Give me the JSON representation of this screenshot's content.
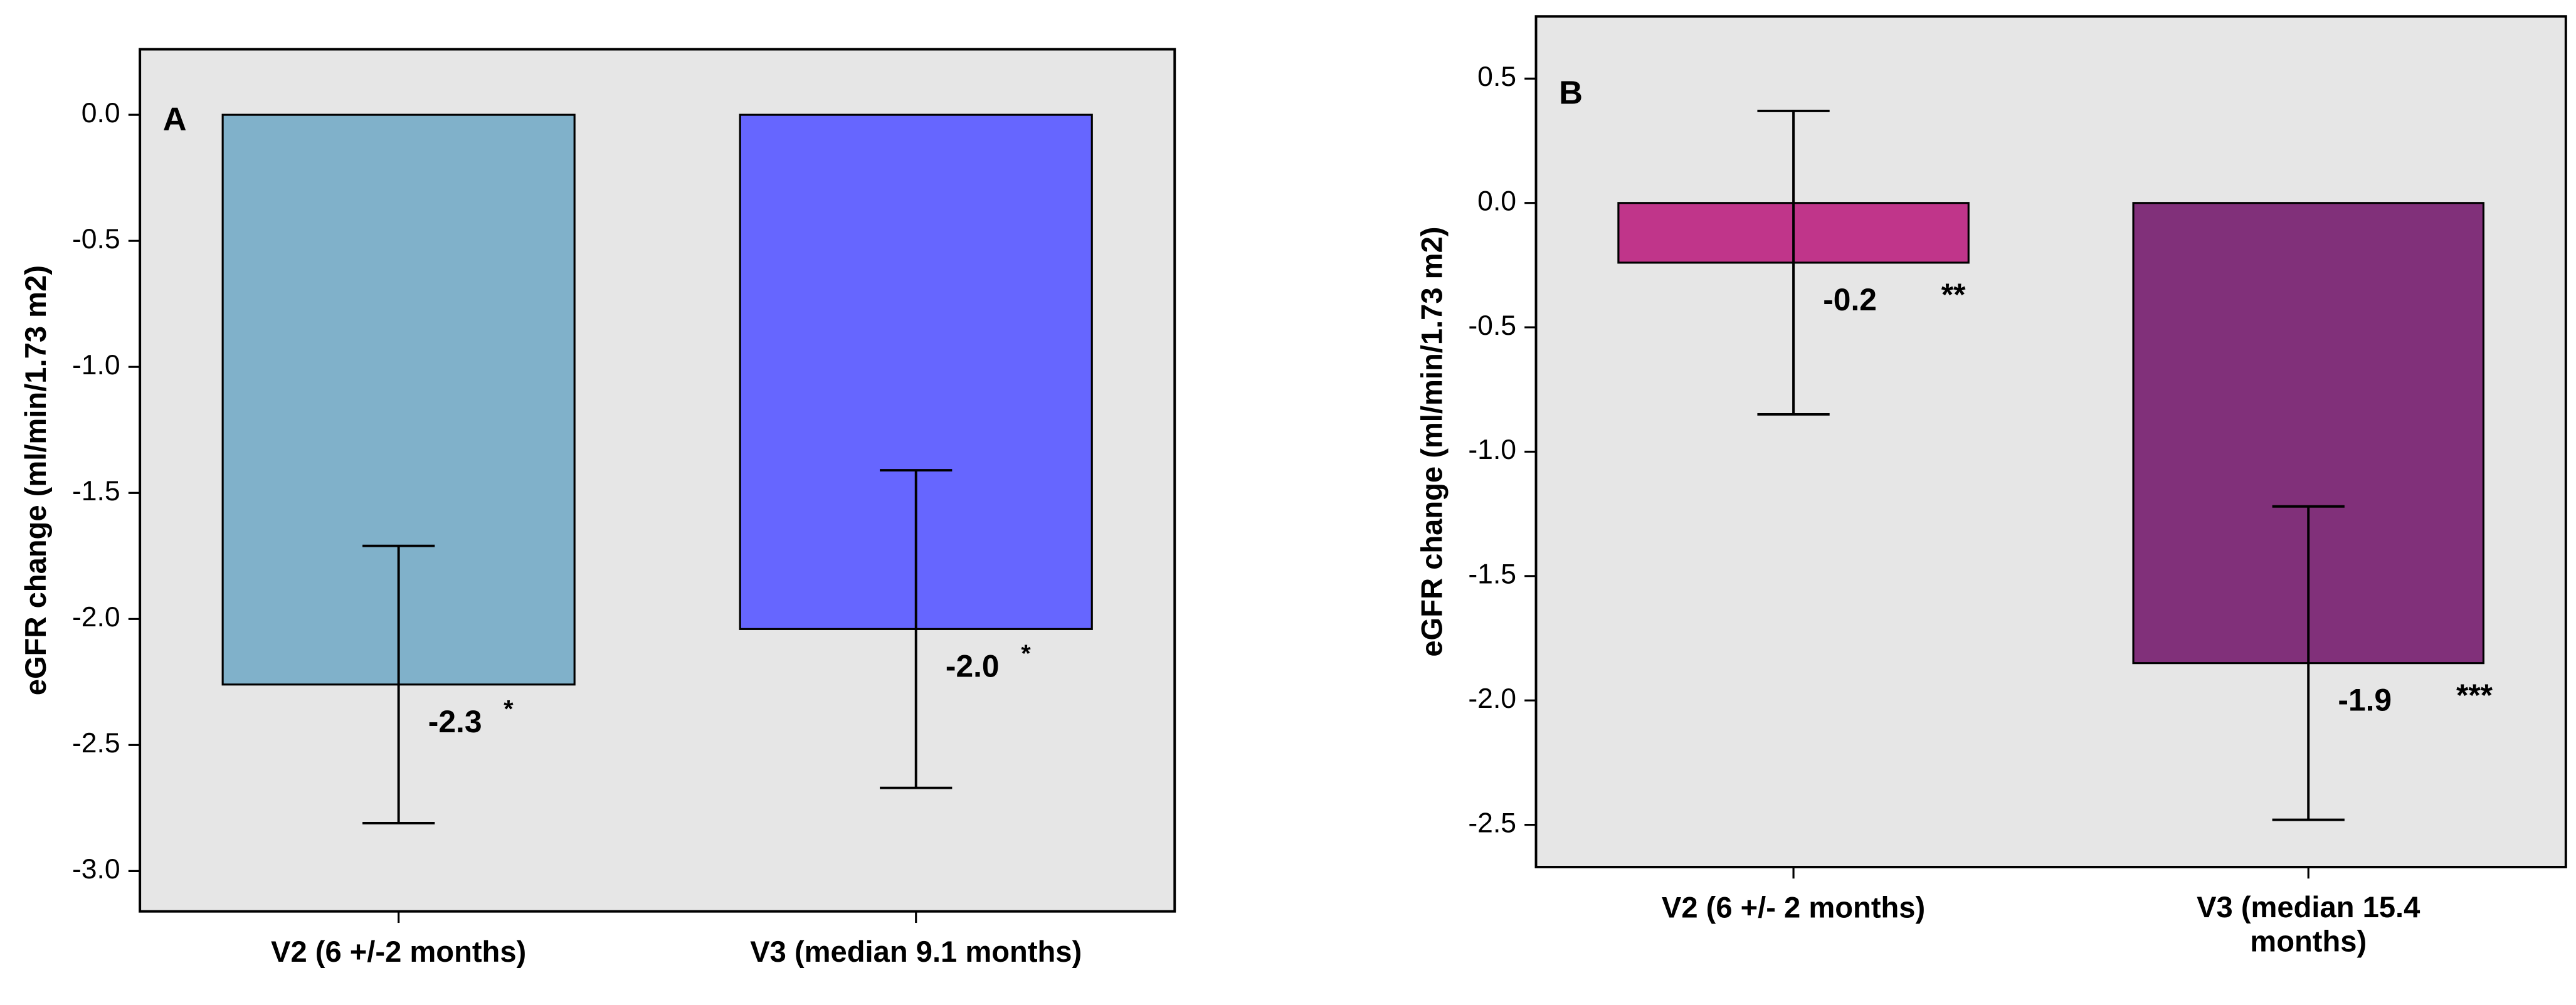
{
  "chart_data": [
    {
      "type": "bar",
      "panel_label": "A",
      "y_label": "eGFR change (ml/min/1.73 m2)",
      "categories": [
        "V2 (6 +/-2 months)",
        "V3 (median 9.1 months)"
      ],
      "values": [
        -2.26,
        -2.04
      ],
      "errors": [
        0.55,
        0.63
      ],
      "value_labels": [
        "-2.3",
        "-2.0"
      ],
      "significance": [
        "*",
        "*"
      ],
      "colors": [
        "#80b1ca",
        "#6666ff"
      ],
      "ylim": [
        -3.16,
        0.26
      ],
      "yticks": [
        {
          "value": 0,
          "label": "0.0"
        },
        -0.5,
        {
          "value": -1,
          "label": "-1.0"
        },
        -1.5,
        {
          "value": -2,
          "label": "-2.0"
        },
        -2.5,
        {
          "value": -3,
          "label": "-3.0"
        }
      ]
    },
    {
      "type": "bar",
      "panel_label": "B",
      "y_label": "eGFR change (ml/min/1.73 m2)",
      "categories": [
        "V2 (6 +/- 2 months)",
        "V3 (median 15.4 months)"
      ],
      "values": [
        -0.24,
        -1.85
      ],
      "errors": [
        0.61,
        0.63
      ],
      "value_labels": [
        "-0.2",
        "-1.9"
      ],
      "significance": [
        "**",
        "***"
      ],
      "colors": [
        "#c0358a",
        "#81307a"
      ],
      "ylim": [
        -2.67,
        0.75
      ],
      "yticks": [
        0.5,
        {
          "value": 0,
          "label": "0.0"
        },
        -0.5,
        {
          "value": -1,
          "label": "-1.0"
        },
        -1.5,
        {
          "value": -2,
          "label": "-2.0"
        },
        -2.5
      ]
    }
  ]
}
